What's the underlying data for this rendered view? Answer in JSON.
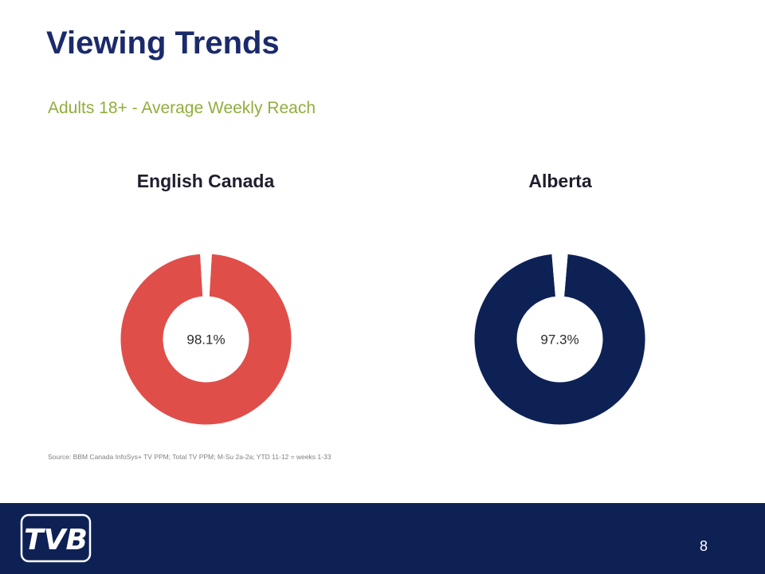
{
  "slide": {
    "title": "Viewing Trends",
    "subtitle": "Adults 18+ - Average Weekly Reach",
    "source": "Source: BBM Canada InfoSys+ TV PPM; Total TV PPM; M-Su 2a-2a; YTD 11-12 = weeks 1-33",
    "page_number": "8"
  },
  "logo": {
    "text": "TVB",
    "icon": "tvb-logo"
  },
  "colors": {
    "title": "#1b2a6b",
    "subtitle": "#8fae3c",
    "footer": "#0e2155"
  },
  "chart_data": [
    {
      "type": "pie",
      "title": "English Canada",
      "center_label": "98.1%",
      "values": [
        98.1,
        1.9
      ],
      "colors": [
        "#e04e4a",
        "#ffffff"
      ]
    },
    {
      "type": "pie",
      "title": "Alberta",
      "center_label": "97.3%",
      "values": [
        97.3,
        2.7
      ],
      "colors": [
        "#0e2155",
        "#ffffff"
      ]
    }
  ]
}
